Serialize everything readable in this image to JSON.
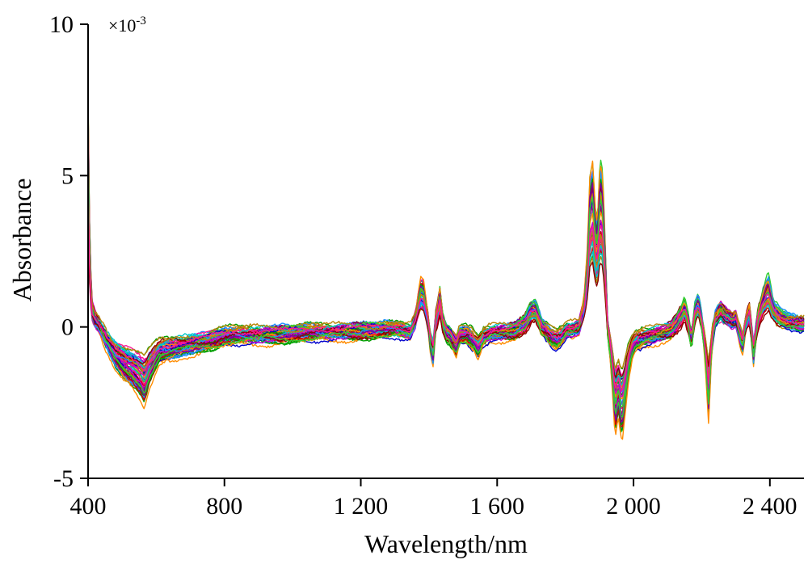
{
  "chart_data": {
    "type": "line",
    "title": "",
    "xlabel": "Wavelength/nm",
    "ylabel": "Absorbance",
    "y_scale_note": "×10-3",
    "y_multiplier_base": "×10",
    "y_multiplier_exp": "-3",
    "xlim": [
      400,
      2500
    ],
    "ylim": [
      -5,
      10
    ],
    "x_ticks": [
      400,
      800,
      1200,
      1600,
      2000,
      2400
    ],
    "x_tick_labels": [
      "400",
      "800",
      "1 200",
      "1 600",
      "2 000",
      "2 400"
    ],
    "y_ticks": [
      -5,
      0,
      5,
      10
    ],
    "y_tick_labels": [
      "-5",
      "0",
      "5",
      "10"
    ],
    "grid": false,
    "legend": "none",
    "series_count": 60,
    "colors": [
      "#d40000",
      "#0000cc",
      "#00a000",
      "#00c8c8",
      "#c800c8",
      "#ff8c00",
      "#7a00a0",
      "#1e90ff",
      "#8b0000",
      "#32cd32",
      "#b8860b",
      "#ff1493"
    ],
    "profile": {
      "x": [
        400,
        405,
        412,
        420,
        435,
        455,
        480,
        505,
        530,
        555,
        565,
        580,
        610,
        680,
        760,
        800,
        900,
        1000,
        1100,
        1200,
        1300,
        1330,
        1345,
        1360,
        1375,
        1385,
        1395,
        1405,
        1412,
        1420,
        1432,
        1440,
        1450,
        1460,
        1470,
        1480,
        1490,
        1510,
        1530,
        1545,
        1560,
        1580,
        1610,
        1650,
        1680,
        1700,
        1712,
        1720,
        1730,
        1745,
        1760,
        1775,
        1790,
        1805,
        1820,
        1840,
        1855,
        1865,
        1872,
        1880,
        1888,
        1894,
        1900,
        1906,
        1912,
        1918,
        1924,
        1930,
        1938,
        1946,
        1955,
        1966,
        1975,
        1985,
        1995,
        2005,
        2030,
        2060,
        2090,
        2110,
        2125,
        2140,
        2150,
        2160,
        2170,
        2180,
        2190,
        2200,
        2210,
        2220,
        2230,
        2240,
        2255,
        2270,
        2290,
        2300,
        2310,
        2320,
        2330,
        2340,
        2352,
        2365,
        2380,
        2395,
        2410,
        2430,
        2450,
        2470,
        2500
      ],
      "y": [
        6.0,
        2.0,
        0.6,
        0.3,
        0.0,
        -0.5,
        -1.0,
        -1.3,
        -1.5,
        -1.8,
        -2.0,
        -1.5,
        -0.9,
        -0.7,
        -0.5,
        -0.35,
        -0.3,
        -0.25,
        -0.2,
        -0.15,
        -0.1,
        -0.15,
        -0.2,
        0.25,
        1.2,
        1.1,
        0.4,
        -0.6,
        -0.9,
        0.2,
        1.0,
        0.2,
        -0.2,
        -0.3,
        -0.5,
        -0.7,
        -0.3,
        -0.3,
        -0.5,
        -0.8,
        -0.4,
        -0.25,
        -0.2,
        -0.15,
        0.1,
        0.55,
        0.6,
        0.35,
        0.0,
        -0.2,
        -0.4,
        -0.5,
        -0.35,
        -0.1,
        -0.1,
        0.0,
        0.7,
        2.0,
        3.8,
        4.2,
        3.0,
        2.6,
        3.9,
        4.3,
        3.3,
        1.8,
        0.0,
        -0.6,
        -1.5,
        -2.8,
        -2.2,
        -2.9,
        -2.2,
        -1.3,
        -0.8,
        -0.55,
        -0.4,
        -0.3,
        -0.2,
        -0.1,
        0.1,
        0.4,
        0.7,
        0.2,
        -0.5,
        0.5,
        0.8,
        0.2,
        -0.8,
        -2.4,
        -0.5,
        0.3,
        0.6,
        0.4,
        0.2,
        0.3,
        -0.2,
        -0.6,
        0.2,
        0.5,
        -0.9,
        0.3,
        0.9,
        1.3,
        0.6,
        0.3,
        0.2,
        0.15,
        0.1
      ]
    }
  }
}
